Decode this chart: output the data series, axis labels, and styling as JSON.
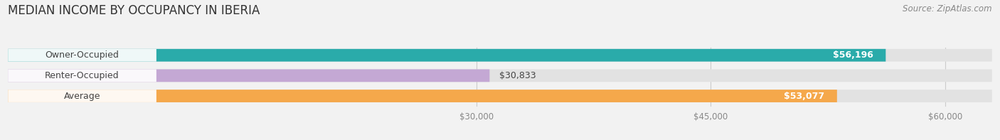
{
  "title": "MEDIAN INCOME BY OCCUPANCY IN IBERIA",
  "source": "Source: ZipAtlas.com",
  "categories": [
    "Owner-Occupied",
    "Renter-Occupied",
    "Average"
  ],
  "values": [
    56196,
    30833,
    53077
  ],
  "bar_colors": [
    "#2AABAA",
    "#C4A8D4",
    "#F5A84B"
  ],
  "bar_bg_color": "#E2E2E2",
  "label_color": "#444444",
  "value_labels": [
    "$56,196",
    "$30,833",
    "$53,077"
  ],
  "x_tick_labels": [
    "$30,000",
    "$45,000",
    "$60,000"
  ],
  "x_tick_values": [
    30000,
    45000,
    60000
  ],
  "xmin": 0,
  "xmax": 63000,
  "bar_height": 0.62,
  "background_color": "#f2f2f2",
  "title_fontsize": 12,
  "source_fontsize": 8.5,
  "label_fontsize": 9,
  "value_fontsize": 9
}
